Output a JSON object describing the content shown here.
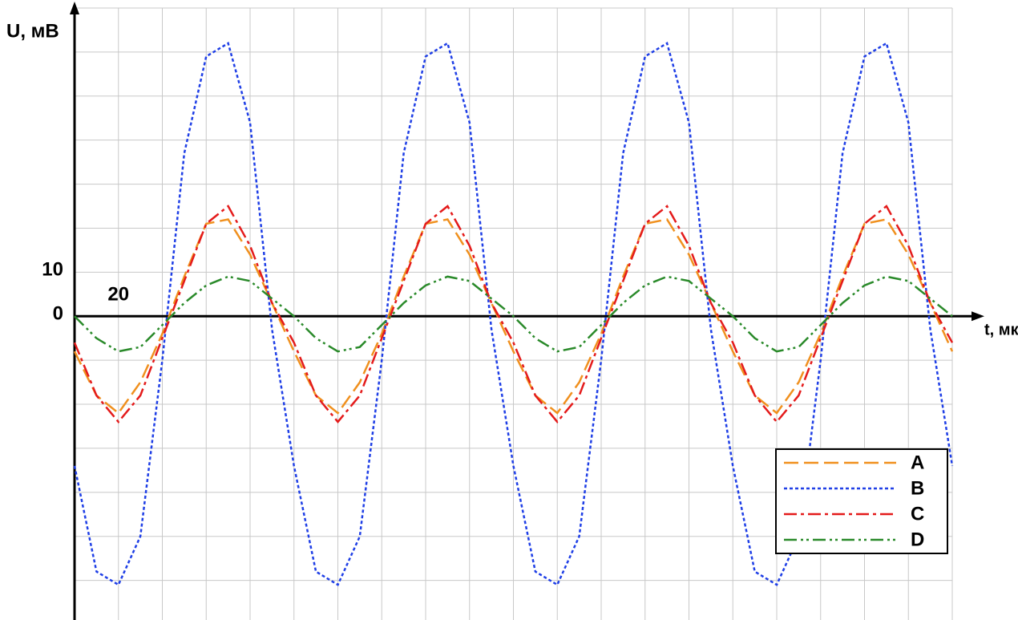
{
  "chart_data": {
    "type": "line",
    "y_label": "U, мВ",
    "x_label": "t, мкс",
    "x": [
      0,
      10,
      20,
      30,
      40,
      50,
      60,
      70,
      80,
      90,
      100,
      110,
      120,
      130,
      140,
      150,
      160,
      170,
      180,
      190,
      200,
      210,
      220,
      230,
      240,
      250,
      260,
      270,
      280,
      290,
      300,
      310,
      320,
      330,
      340,
      350,
      360,
      370,
      380,
      390,
      400
    ],
    "series": [
      {
        "name": "A",
        "color": "#f0901e",
        "dash": "18,7",
        "values": [
          -8,
          -18,
          -22,
          -15,
          -4,
          9,
          21,
          22,
          14,
          3,
          -8,
          -18,
          -22,
          -15,
          -4,
          9,
          21,
          22,
          14,
          3,
          -8,
          -18,
          -22,
          -15,
          -4,
          9,
          21,
          22,
          14,
          3,
          -8,
          -18,
          -22,
          -15,
          -4,
          9,
          21,
          22,
          14,
          3,
          -8
        ]
      },
      {
        "name": "B",
        "color": "#1f3fe6",
        "dash": "4,3",
        "values": [
          -34,
          -58,
          -61,
          -50,
          -10,
          37,
          59,
          62,
          44,
          -3,
          -34,
          -58,
          -61,
          -50,
          -10,
          37,
          59,
          62,
          44,
          -3,
          -34,
          -58,
          -61,
          -50,
          -10,
          37,
          59,
          62,
          44,
          -3,
          -34,
          -58,
          -61,
          -50,
          -10,
          37,
          59,
          62,
          44,
          -3,
          -34
        ]
      },
      {
        "name": "C",
        "color": "#e41b1b",
        "dash": "16,5,4,5",
        "values": [
          -6,
          -18,
          -24,
          -18,
          -5,
          8,
          21,
          25,
          16,
          3,
          -6,
          -18,
          -24,
          -18,
          -5,
          8,
          21,
          25,
          16,
          3,
          -6,
          -18,
          -24,
          -18,
          -5,
          8,
          21,
          25,
          16,
          3,
          -6,
          -18,
          -24,
          -18,
          -5,
          8,
          21,
          25,
          16,
          3,
          -6
        ]
      },
      {
        "name": "D",
        "color": "#2a8a2a",
        "dash": "16,5,3,4,3,5",
        "values": [
          0,
          -5,
          -8,
          -7,
          -2,
          3,
          7,
          9,
          8,
          4,
          0,
          -5,
          -8,
          -7,
          -2,
          3,
          7,
          9,
          8,
          4,
          0,
          -5,
          -8,
          -7,
          -2,
          3,
          7,
          9,
          8,
          4,
          0,
          -5,
          -8,
          -7,
          -2,
          3,
          7,
          9,
          8,
          4,
          0
        ]
      }
    ],
    "xlim": [
      0,
      400
    ],
    "ylim": [
      -69,
      70
    ],
    "xticks": [
      20,
      {
        "value": 40,
        "label": null
      },
      {
        "value": 60,
        "label": null
      },
      {
        "value": 80,
        "label": null
      },
      {
        "value": 100,
        "label": null
      },
      {
        "value": 120,
        "label": null
      },
      {
        "value": 140,
        "label": null
      },
      {
        "value": 160,
        "label": null
      },
      {
        "value": 180,
        "label": null
      },
      {
        "value": 200,
        "label": null
      },
      {
        "value": 220,
        "label": null
      },
      {
        "value": 240,
        "label": null
      },
      {
        "value": 260,
        "label": null
      },
      {
        "value": 280,
        "label": null
      },
      {
        "value": 300,
        "label": null
      },
      {
        "value": 320,
        "label": null
      },
      {
        "value": 340,
        "label": null
      },
      {
        "value": 360,
        "label": null
      },
      {
        "value": 380,
        "label": null
      },
      {
        "value": 400,
        "label": null
      }
    ],
    "yticks": [
      {
        "value": -60,
        "label": null
      },
      {
        "value": -50,
        "label": null
      },
      {
        "value": -40,
        "label": null
      },
      {
        "value": -30,
        "label": null
      },
      {
        "value": -20,
        "label": null
      },
      {
        "value": -10,
        "label": null
      },
      0,
      10,
      {
        "value": 20,
        "label": null
      },
      {
        "value": 30,
        "label": null
      },
      {
        "value": 40,
        "label": null
      },
      {
        "value": 50,
        "label": null
      },
      {
        "value": 60,
        "label": null
      },
      {
        "value": 70,
        "label": null
      }
    ],
    "grid": true,
    "legend": "lower right"
  }
}
